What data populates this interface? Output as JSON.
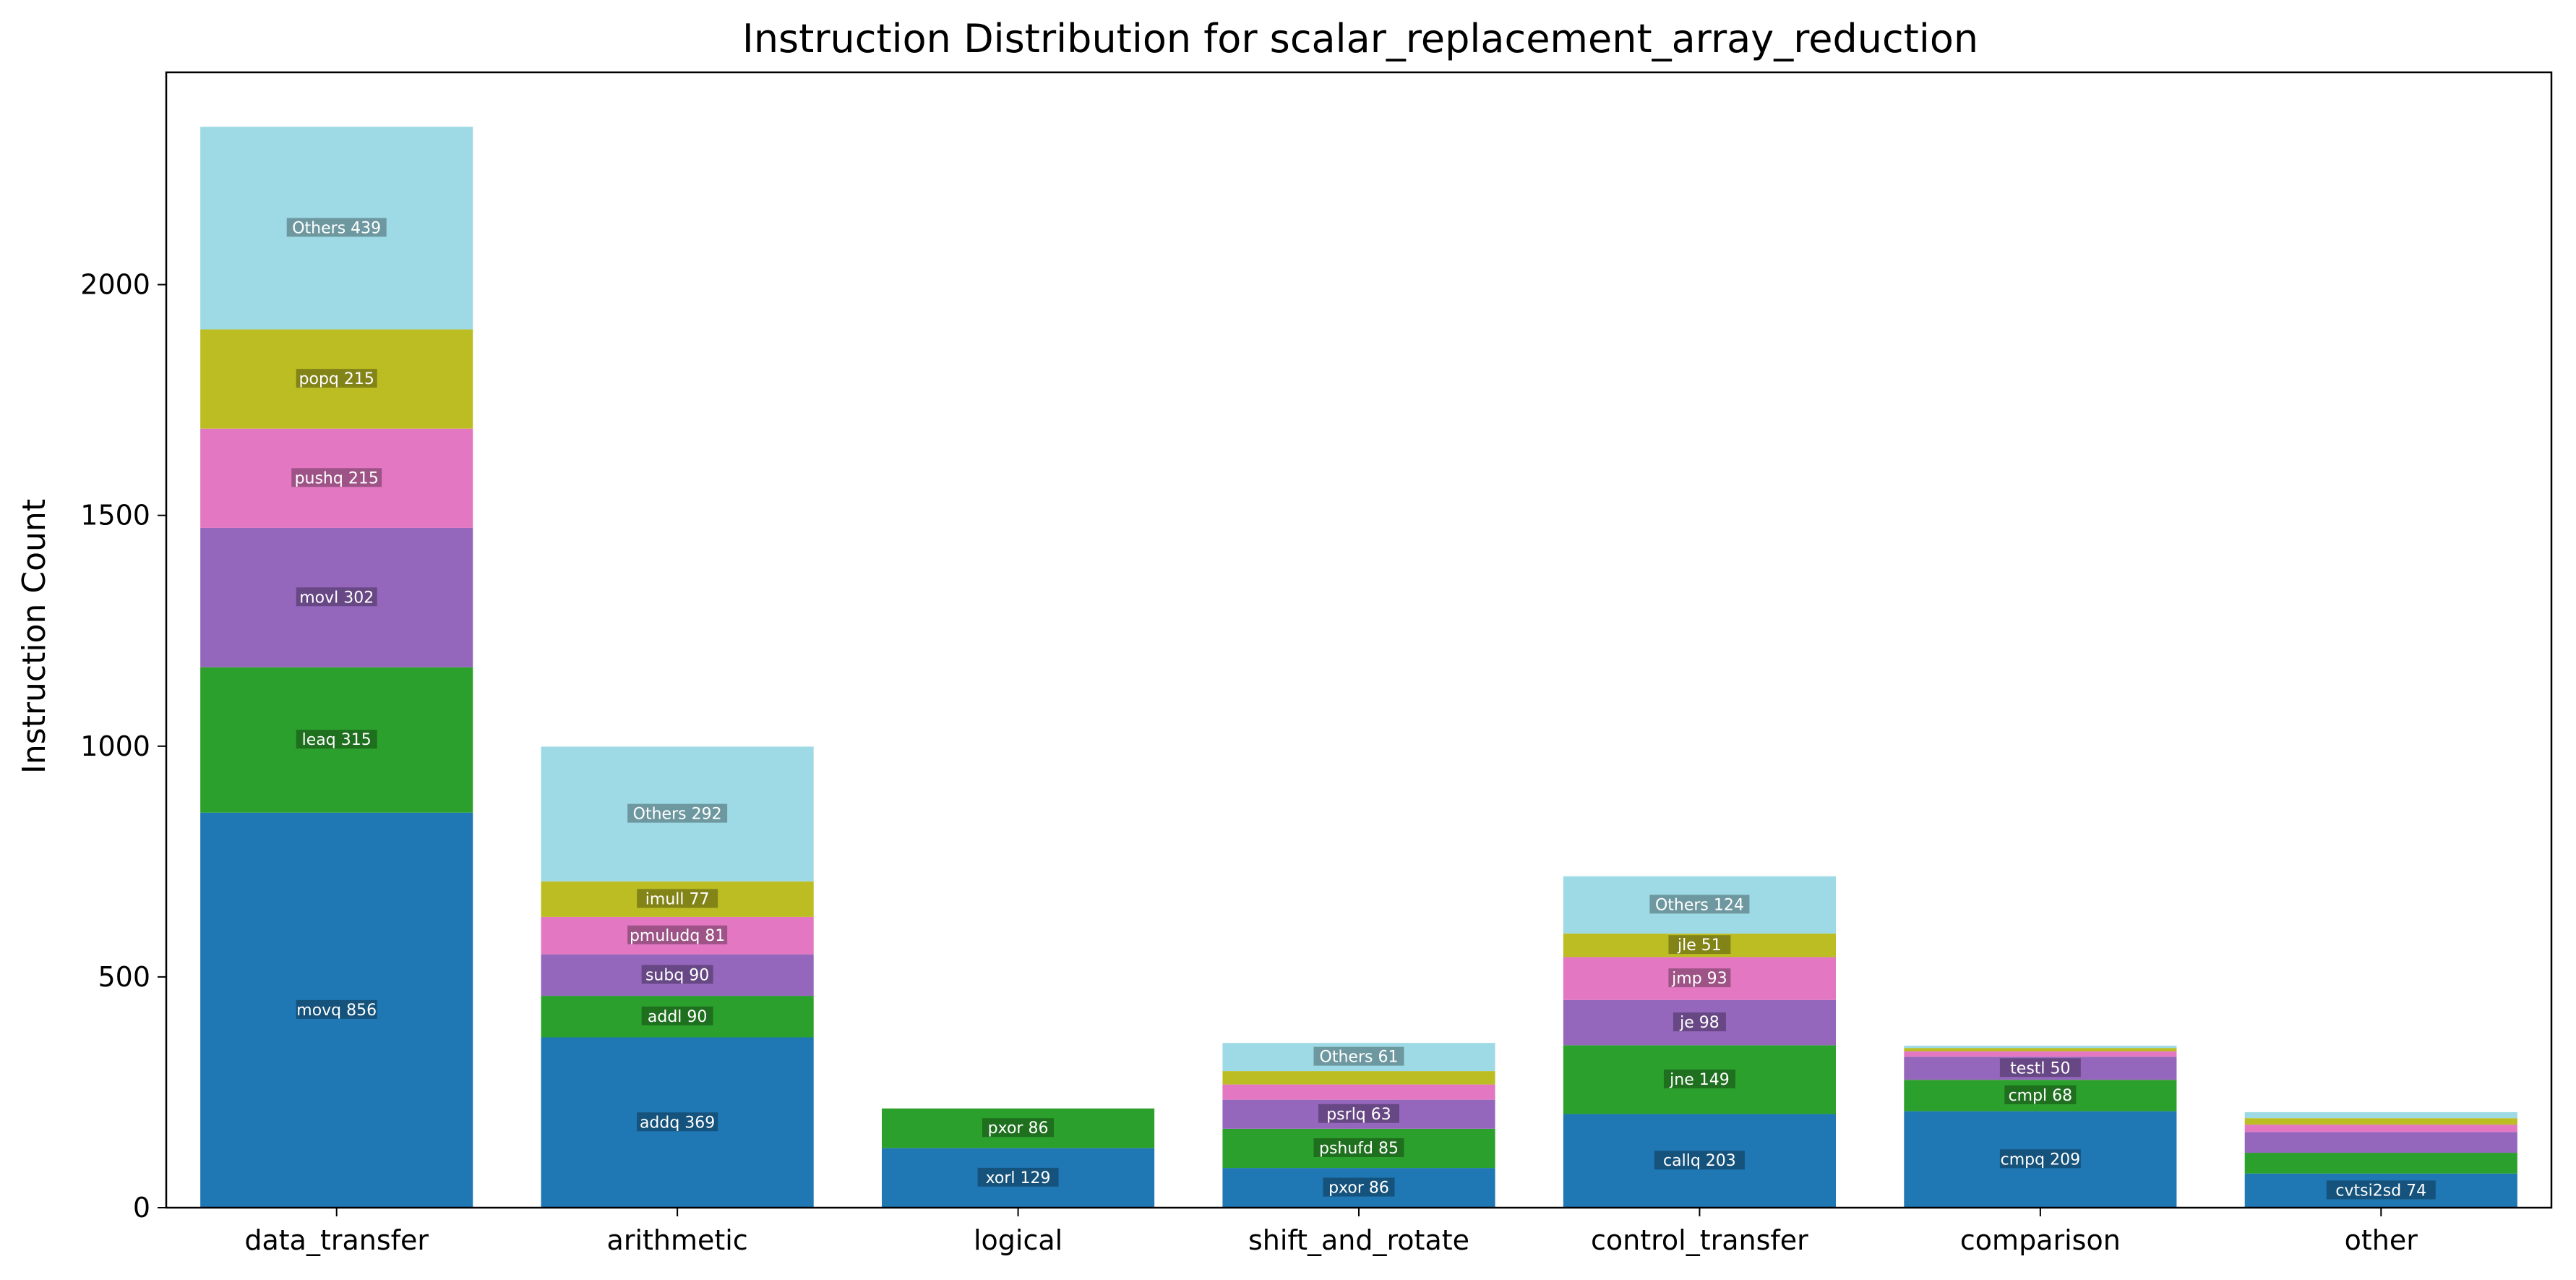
{
  "chart_data": {
    "type": "bar",
    "stacked": true,
    "title": "Instruction Distribution for scalar_replacement_array_reduction",
    "xlabel": "",
    "ylabel": "Instruction Count",
    "ylim": [
      0,
      2460
    ],
    "yticks": [
      0,
      500,
      1000,
      1500,
      2000
    ],
    "grid": false,
    "colors": [
      "#1f77b4",
      "#2ca02c",
      "#9467bd",
      "#e377c2",
      "#bcbd22",
      "#9edae5"
    ],
    "categories": [
      {
        "name": "data_transfer",
        "segments": [
          {
            "label": "movq 856",
            "value": 856
          },
          {
            "label": "leaq 315",
            "value": 315
          },
          {
            "label": "movl 302",
            "value": 302
          },
          {
            "label": "pushq 215",
            "value": 215
          },
          {
            "label": "popq 215",
            "value": 215
          },
          {
            "label": "Others 439",
            "value": 439
          }
        ]
      },
      {
        "name": "arithmetic",
        "segments": [
          {
            "label": "addq 369",
            "value": 369
          },
          {
            "label": "addl 90",
            "value": 90
          },
          {
            "label": "subq 90",
            "value": 90
          },
          {
            "label": "pmuludq 81",
            "value": 81
          },
          {
            "label": "imull 77",
            "value": 77
          },
          {
            "label": "Others 292",
            "value": 292
          }
        ]
      },
      {
        "name": "logical",
        "segments": [
          {
            "label": "xorl 129",
            "value": 129
          },
          {
            "label": "pxor 86",
            "value": 86
          }
        ]
      },
      {
        "name": "shift_and_rotate",
        "segments": [
          {
            "label": "pxor 86",
            "value": 86
          },
          {
            "label": "pshufd 85",
            "value": 85
          },
          {
            "label": "psrlq 63",
            "value": 63
          },
          {
            "label": "",
            "value": 33
          },
          {
            "label": "",
            "value": 29
          },
          {
            "label": "Others 61",
            "value": 61
          }
        ]
      },
      {
        "name": "control_transfer",
        "segments": [
          {
            "label": "callq 203",
            "value": 203
          },
          {
            "label": "jne 149",
            "value": 149
          },
          {
            "label": "je 98",
            "value": 98
          },
          {
            "label": "jmp 93",
            "value": 93
          },
          {
            "label": "jle 51",
            "value": 51
          },
          {
            "label": "Others 124",
            "value": 124
          }
        ]
      },
      {
        "name": "comparison",
        "segments": [
          {
            "label": "cmpq 209",
            "value": 209
          },
          {
            "label": "cmpl 68",
            "value": 68
          },
          {
            "label": "testl 50",
            "value": 50
          },
          {
            "label": "",
            "value": 12
          },
          {
            "label": "",
            "value": 7
          },
          {
            "label": "",
            "value": 5
          }
        ]
      },
      {
        "name": "other",
        "segments": [
          {
            "label": "cvtsi2sd 74",
            "value": 74
          },
          {
            "label": "",
            "value": 45
          },
          {
            "label": "",
            "value": 45
          },
          {
            "label": "",
            "value": 16
          },
          {
            "label": "",
            "value": 14
          },
          {
            "label": "",
            "value": 13
          }
        ]
      }
    ]
  }
}
